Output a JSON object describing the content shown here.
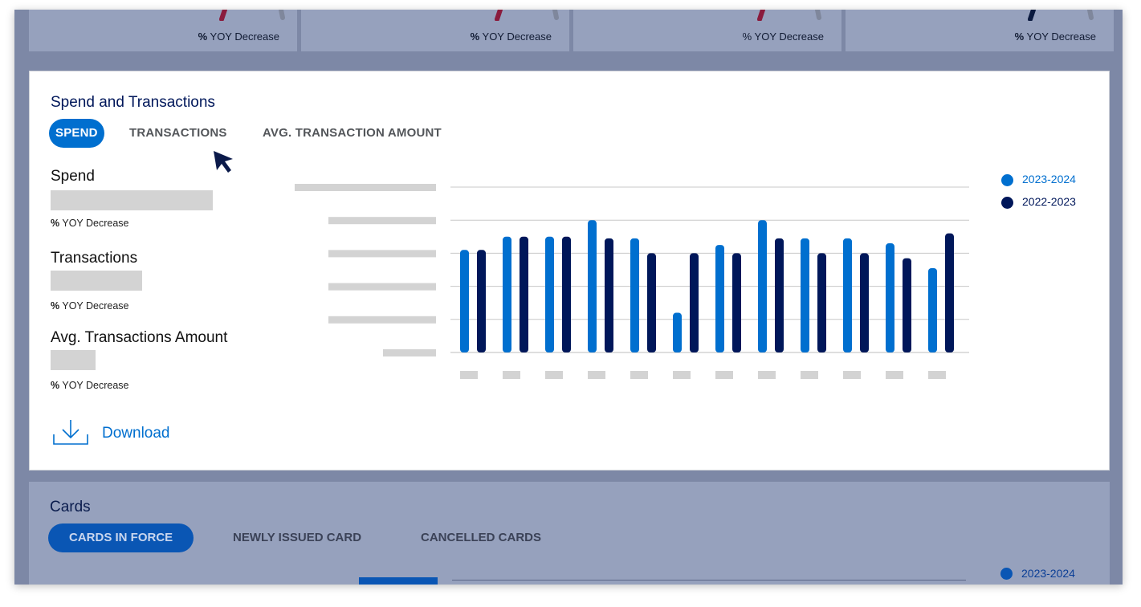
{
  "kpi_cards": [
    {
      "text_pct": "%",
      "text_rest": " YOY Decrease",
      "gauge_color": "#8a1b3d"
    },
    {
      "text_pct": "%",
      "text_rest": " YOY Decrease",
      "gauge_color": "#8a1b3d"
    },
    {
      "text_pct": "",
      "text_rest": "% YOY Decrease",
      "gauge_color": "#8a1b3d"
    },
    {
      "text_pct": "%",
      "text_rest": " YOY Decrease",
      "gauge_color": "#0b1a3f"
    }
  ],
  "spend_panel": {
    "title": "Spend and Transactions",
    "tabs": [
      {
        "label": "SPEND",
        "active": true
      },
      {
        "label": "TRANSACTIONS",
        "active": false
      },
      {
        "label": "AVG. TRANSACTION AMOUNT",
        "active": false
      }
    ],
    "metrics": [
      {
        "label": "Spend",
        "sub_pct": "%",
        "sub_rest": " YOY Decrease"
      },
      {
        "label": "Transactions",
        "sub_pct": "%",
        "sub_rest": " YOY Decrease"
      },
      {
        "label": "Avg. Transactions Amount",
        "sub_pct": "%",
        "sub_rest": " YOY Decrease"
      }
    ],
    "download_label": "Download"
  },
  "chart_data": {
    "type": "bar",
    "categories": [
      "",
      "",
      "",
      "",
      "",
      "",
      "",
      "",
      "",
      "",
      "",
      ""
    ],
    "series": [
      {
        "name": "2023-2024",
        "color": "#006fcf",
        "values": [
          3.1,
          3.5,
          3.5,
          4.0,
          3.45,
          1.2,
          3.25,
          4.0,
          3.45,
          3.45,
          3.3,
          2.55
        ]
      },
      {
        "name": "2022-2023",
        "color": "#00175a",
        "values": [
          3.1,
          3.5,
          3.5,
          3.45,
          3.0,
          3.0,
          3.0,
          3.45,
          3.0,
          3.0,
          2.85,
          3.6
        ]
      }
    ],
    "ylim": [
      0,
      5
    ],
    "grid": true,
    "legend": "right",
    "tick_labels_redacted": true
  },
  "cards_panel": {
    "title": "Cards",
    "tabs": [
      {
        "label": "CARDS IN FORCE",
        "active": true
      },
      {
        "label": "NEWLY ISSUED CARD",
        "active": false
      },
      {
        "label": "CANCELLED CARDS",
        "active": false
      }
    ],
    "legend_label": "2023-2024"
  },
  "colors": {
    "accent": "#006fcf",
    "navy": "#00175a",
    "placeholder_gray": "#d3d3d3"
  }
}
